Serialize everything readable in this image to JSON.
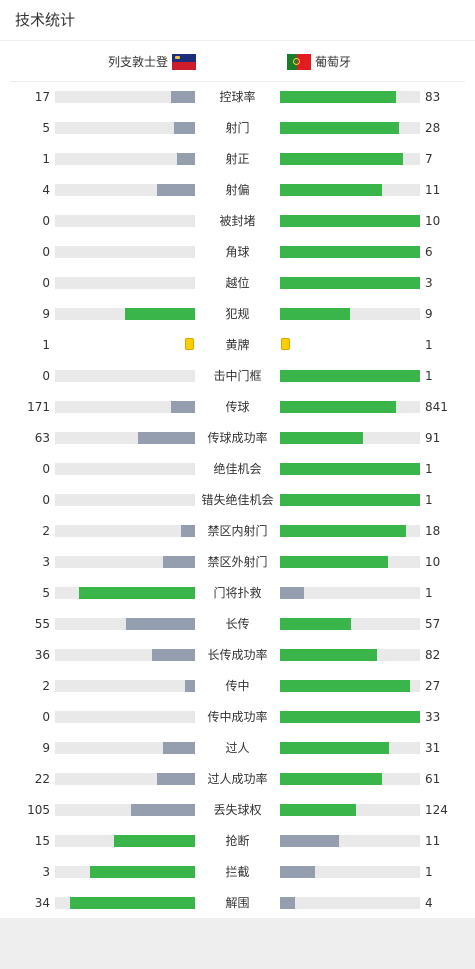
{
  "title": "技术统计",
  "teams": {
    "home": {
      "name": "列支敦士登",
      "flag": "liechtenstein-flag-icon"
    },
    "away": {
      "name": "葡萄牙",
      "flag": "portugal-flag-icon"
    }
  },
  "colors": {
    "winner": "#3ab54a",
    "loser": "#959eae",
    "track": "#e9e9e9",
    "yellow_card": "#ffcc00"
  },
  "stats": [
    {
      "label": "控球率",
      "home": "17",
      "away": "83",
      "home_frac": 0.17,
      "away_frac": 0.83
    },
    {
      "label": "射门",
      "home": "5",
      "away": "28",
      "home_frac": 0.15,
      "away_frac": 0.85
    },
    {
      "label": "射正",
      "home": "1",
      "away": "7",
      "home_frac": 0.13,
      "away_frac": 0.88
    },
    {
      "label": "射偏",
      "home": "4",
      "away": "11",
      "home_frac": 0.27,
      "away_frac": 0.73
    },
    {
      "label": "被封堵",
      "home": "0",
      "away": "10",
      "home_frac": 0,
      "away_frac": 1
    },
    {
      "label": "角球",
      "home": "0",
      "away": "6",
      "home_frac": 0,
      "away_frac": 1
    },
    {
      "label": "越位",
      "home": "0",
      "away": "3",
      "home_frac": 0,
      "away_frac": 1
    },
    {
      "label": "犯规",
      "home": "9",
      "away": "9",
      "home_frac": 0.5,
      "away_frac": 0.5,
      "home_color": "winner",
      "away_color": "winner"
    },
    {
      "label": "黄牌",
      "home": "1",
      "away": "1",
      "card": true
    },
    {
      "label": "击中门框",
      "home": "0",
      "away": "1",
      "home_frac": 0,
      "away_frac": 1
    },
    {
      "label": "传球",
      "home": "171",
      "away": "841",
      "home_frac": 0.17,
      "away_frac": 0.83
    },
    {
      "label": "传球成功率",
      "home": "63",
      "away": "91",
      "home_frac": 0.41,
      "away_frac": 0.59
    },
    {
      "label": "绝佳机会",
      "home": "0",
      "away": "1",
      "home_frac": 0,
      "away_frac": 1
    },
    {
      "label": "错失绝佳机会",
      "home": "0",
      "away": "1",
      "home_frac": 0,
      "away_frac": 1
    },
    {
      "label": "禁区内射门",
      "home": "2",
      "away": "18",
      "home_frac": 0.1,
      "away_frac": 0.9
    },
    {
      "label": "禁区外射门",
      "home": "3",
      "away": "10",
      "home_frac": 0.23,
      "away_frac": 0.77
    },
    {
      "label": "门将扑救",
      "home": "5",
      "away": "1",
      "home_frac": 0.83,
      "away_frac": 0.17,
      "home_color": "winner",
      "away_color": "loser"
    },
    {
      "label": "长传",
      "home": "55",
      "away": "57",
      "home_frac": 0.49,
      "away_frac": 0.51
    },
    {
      "label": "长传成功率",
      "home": "36",
      "away": "82",
      "home_frac": 0.31,
      "away_frac": 0.69
    },
    {
      "label": "传中",
      "home": "2",
      "away": "27",
      "home_frac": 0.07,
      "away_frac": 0.93
    },
    {
      "label": "传中成功率",
      "home": "0",
      "away": "33",
      "home_frac": 0,
      "away_frac": 1
    },
    {
      "label": "过人",
      "home": "9",
      "away": "31",
      "home_frac": 0.23,
      "away_frac": 0.78
    },
    {
      "label": "过人成功率",
      "home": "22",
      "away": "61",
      "home_frac": 0.27,
      "away_frac": 0.73
    },
    {
      "label": "丢失球权",
      "home": "105",
      "away": "124",
      "home_frac": 0.46,
      "away_frac": 0.54
    },
    {
      "label": "抢断",
      "home": "15",
      "away": "11",
      "home_frac": 0.58,
      "away_frac": 0.42,
      "home_color": "winner",
      "away_color": "loser"
    },
    {
      "label": "拦截",
      "home": "3",
      "away": "1",
      "home_frac": 0.75,
      "away_frac": 0.25,
      "home_color": "winner",
      "away_color": "loser"
    },
    {
      "label": "解围",
      "home": "34",
      "away": "4",
      "home_frac": 0.89,
      "away_frac": 0.11,
      "home_color": "winner",
      "away_color": "loser"
    }
  ]
}
